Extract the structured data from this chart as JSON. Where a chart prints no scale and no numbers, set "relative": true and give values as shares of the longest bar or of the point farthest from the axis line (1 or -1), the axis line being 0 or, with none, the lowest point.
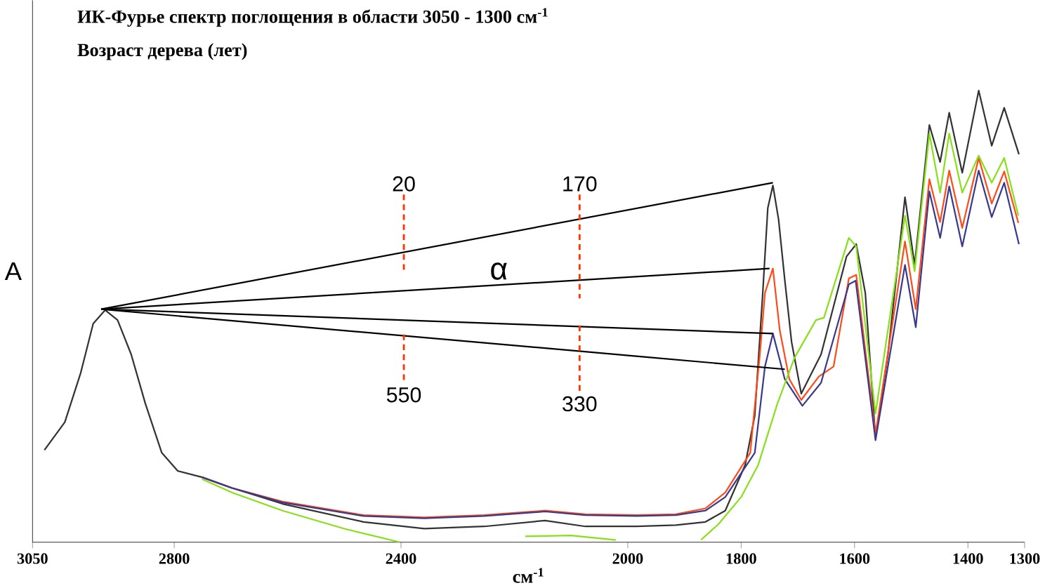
{
  "chart_data": {
    "type": "line",
    "title": "ИК-Фурье спектр поглощения в области  3050 - 1300 см$^{-1}$",
    "subtitle": "Возраст дерева (лет)",
    "xlabel": "см$^{-1}$",
    "ylabel": "A",
    "relative": true,
    "xlim": [
      3050,
      1300
    ],
    "xticks": [
      3050,
      2800,
      2400,
      2000,
      1800,
      1600,
      1400,
      1300
    ],
    "series": [
      {
        "color": "#333333",
        "x": [
          3029,
          2993,
          2965,
          2943,
          2922,
          2900,
          2876,
          2851,
          2822,
          2794,
          2751,
          2698,
          2609,
          2466,
          2359,
          2253,
          2146,
          2075,
          1984,
          1915,
          1863,
          1828,
          1793,
          1776,
          1762,
          1753,
          1744,
          1734,
          1723,
          1711,
          1694,
          1659,
          1614,
          1597,
          1581,
          1563,
          1541,
          1511,
          1494,
          1468,
          1449,
          1433,
          1410,
          1381,
          1358,
          1336,
          1310
        ],
        "values": [
          0.204,
          0.266,
          0.375,
          0.484,
          0.514,
          0.492,
          0.416,
          0.307,
          0.198,
          0.158,
          0.144,
          0.12,
          0.085,
          0.045,
          0.03,
          0.035,
          0.048,
          0.035,
          0.035,
          0.038,
          0.045,
          0.07,
          0.171,
          0.28,
          0.55,
          0.74,
          0.79,
          0.715,
          0.58,
          0.443,
          0.329,
          0.416,
          0.633,
          0.66,
          0.552,
          0.231,
          0.416,
          0.764,
          0.614,
          0.924,
          0.842,
          0.951,
          0.818,
          1.0,
          0.878,
          0.962,
          0.859
        ]
      },
      {
        "color": "#ff4a1a",
        "x": [
          2751,
          2698,
          2609,
          2466,
          2359,
          2253,
          2146,
          2075,
          1984,
          1915,
          1863,
          1828,
          1784,
          1767,
          1758,
          1744,
          1732,
          1715,
          1694,
          1663,
          1637,
          1610,
          1597,
          1563,
          1511,
          1492,
          1468,
          1449,
          1433,
          1410,
          1381,
          1358,
          1336,
          1311
        ],
        "values": [
          0.144,
          0.12,
          0.09,
          0.06,
          0.055,
          0.06,
          0.07,
          0.062,
          0.06,
          0.062,
          0.075,
          0.11,
          0.198,
          0.416,
          0.552,
          0.606,
          0.47,
          0.361,
          0.315,
          0.367,
          0.389,
          0.584,
          0.592,
          0.239,
          0.666,
          0.516,
          0.804,
          0.709,
          0.823,
          0.696,
          0.851,
          0.75,
          0.821,
          0.707
        ]
      },
      {
        "color": "#3a3a8c",
        "x": [
          2751,
          2698,
          2609,
          2466,
          2359,
          2253,
          2146,
          2075,
          1984,
          1915,
          1863,
          1828,
          1776,
          1758,
          1744,
          1723,
          1692,
          1659,
          1610,
          1598,
          1563,
          1511,
          1492,
          1468,
          1449,
          1433,
          1410,
          1381,
          1358,
          1336,
          1310
        ],
        "values": [
          0.144,
          0.12,
          0.088,
          0.058,
          0.053,
          0.058,
          0.068,
          0.06,
          0.058,
          0.06,
          0.07,
          0.1,
          0.198,
          0.389,
          0.462,
          0.361,
          0.302,
          0.353,
          0.571,
          0.579,
          0.226,
          0.614,
          0.476,
          0.777,
          0.674,
          0.788,
          0.655,
          0.823,
          0.72,
          0.796,
          0.66
        ]
      },
      {
        "color": "#88e01a",
        "x": [
          2751,
          2698,
          2609,
          2500,
          2402,
          2300,
          2181,
          2100,
          2021,
          1950,
          1871,
          1840,
          1800,
          1770,
          1736,
          1706,
          1668,
          1654,
          1610,
          1597,
          1563,
          1511,
          1494,
          1468,
          1449,
          1433,
          1410,
          1381,
          1358,
          1336,
          1311
        ],
        "values": [
          0.14,
          0.11,
          0.07,
          0.03,
          0.0,
          null,
          0.013,
          0.015,
          0.005,
          null,
          0.005,
          0.04,
          0.1,
          0.171,
          0.307,
          0.408,
          0.492,
          0.497,
          0.674,
          0.655,
          0.285,
          0.723,
          0.6,
          0.905,
          0.774,
          0.905,
          0.774,
          0.856,
          0.796,
          0.851,
          0.723
        ]
      },
      {
        "color": "#000000",
        "x": [
          2929,
          1744
        ],
        "values": [
          0.516,
          0.796
        ]
      },
      {
        "color": "#000000",
        "x": [
          2929,
          1750
        ],
        "values": [
          0.516,
          0.606
        ]
      },
      {
        "color": "#000000",
        "x": [
          2929,
          1744
        ],
        "values": [
          0.516,
          0.462
        ]
      },
      {
        "color": "#000000",
        "x": [
          2929,
          1723
        ],
        "values": [
          0.516,
          0.383
        ]
      },
      {
        "color": "#ff3300",
        "line_style": "dashed",
        "x": [
          2395,
          2395
        ],
        "values": [
          0.77,
          0.6
        ]
      },
      {
        "color": "#ff3300",
        "line_style": "dashed",
        "x": [
          2085,
          2085
        ],
        "values": [
          0.77,
          0.54
        ]
      },
      {
        "color": "#ff3300",
        "line_style": "dashed",
        "x": [
          2395,
          2395
        ],
        "values": [
          0.46,
          0.35
        ]
      },
      {
        "color": "#ff3300",
        "line_style": "dashed",
        "x": [
          2085,
          2085
        ],
        "values": [
          0.48,
          0.33
        ]
      }
    ],
    "annotations": [
      "20",
      "170",
      "550",
      "330",
      "α"
    ]
  }
}
